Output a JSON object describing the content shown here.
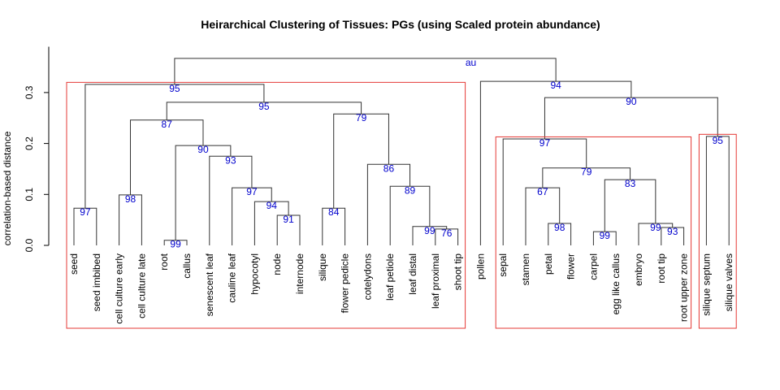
{
  "chart_data": {
    "type": "dendrogram",
    "title": "Heirarchical Clustering of Tissues: PGs (using Scaled protein abundance)",
    "y_label": "correlation-based distance",
    "au_label": "au",
    "ylim": [
      0,
      0.39
    ],
    "yticks": [
      {
        "value": 0,
        "label": "0.0"
      },
      {
        "value": 0.1,
        "label": "0.1"
      },
      {
        "value": 0.2,
        "label": "0.2"
      },
      {
        "value": 0.3,
        "label": "0.3"
      }
    ],
    "line_color": "#333333",
    "au_color": "#0000cd",
    "box_color": "#e53935",
    "tree": {
      "height": 0.367,
      "children": [
        {
          "height": 0.316,
          "au": 95,
          "box": true,
          "children": [
            {
              "height": 0.073,
              "au": 97,
              "children": [
                {
                  "label": "seed"
                },
                {
                  "label": "seed imbibed"
                }
              ]
            },
            {
              "height": 0.281,
              "au": 95,
              "children": [
                {
                  "height": 0.246,
                  "au": 87,
                  "children": [
                    {
                      "height": 0.099,
                      "au": 98,
                      "children": [
                        {
                          "label": "cell culture early"
                        },
                        {
                          "label": "cell culture late"
                        }
                      ]
                    },
                    {
                      "height": 0.196,
                      "au": 90,
                      "children": [
                        {
                          "height": 0.01,
                          "au": 99,
                          "children": [
                            {
                              "label": "root"
                            },
                            {
                              "label": "callus"
                            }
                          ]
                        },
                        {
                          "height": 0.175,
                          "au": 93,
                          "children": [
                            {
                              "label": "senescent leaf"
                            },
                            {
                              "height": 0.113,
                              "au": 97,
                              "children": [
                                {
                                  "label": "cauline leaf"
                                },
                                {
                                  "height": 0.086,
                                  "au": 94,
                                  "children": [
                                    {
                                      "label": "hypocotyl"
                                    },
                                    {
                                      "height": 0.059,
                                      "au": 91,
                                      "children": [
                                        {
                                          "label": "node"
                                        },
                                        {
                                          "label": "internode"
                                        }
                                      ]
                                    }
                                  ]
                                }
                              ]
                            }
                          ]
                        }
                      ]
                    }
                  ]
                },
                {
                  "height": 0.258,
                  "au": 79,
                  "children": [
                    {
                      "height": 0.073,
                      "au": 84,
                      "children": [
                        {
                          "label": "silique"
                        },
                        {
                          "label": "flower pedicle"
                        }
                      ]
                    },
                    {
                      "height": 0.159,
                      "au": 86,
                      "children": [
                        {
                          "label": "cotelydons"
                        },
                        {
                          "height": 0.116,
                          "au": 89,
                          "children": [
                            {
                              "label": "leaf petiole"
                            },
                            {
                              "height": 0.037,
                              "au": 99,
                              "children": [
                                {
                                  "label": "leaf distal"
                                },
                                {
                                  "height": 0.032,
                                  "au": 76,
                                  "children": [
                                    {
                                      "label": "leaf proximal"
                                    },
                                    {
                                      "label": "shoot tip"
                                    }
                                  ]
                                }
                              ]
                            }
                          ]
                        }
                      ]
                    }
                  ]
                }
              ]
            }
          ]
        },
        {
          "height": 0.322,
          "au": 94,
          "children": [
            {
              "label": "pollen"
            },
            {
              "height": 0.29,
              "au": 90,
              "children": [
                {
                  "height": 0.209,
                  "au": 97,
                  "box": true,
                  "children": [
                    {
                      "label": "sepal"
                    },
                    {
                      "height": 0.152,
                      "au": 79,
                      "children": [
                        {
                          "height": 0.113,
                          "au": 67,
                          "children": [
                            {
                              "label": "stamen"
                            },
                            {
                              "height": 0.043,
                              "au": 98,
                              "children": [
                                {
                                  "label": "petal"
                                },
                                {
                                  "label": "flower"
                                }
                              ]
                            }
                          ]
                        },
                        {
                          "height": 0.129,
                          "au": 83,
                          "children": [
                            {
                              "height": 0.027,
                              "au": 99,
                              "children": [
                                {
                                  "label": "carpel"
                                },
                                {
                                  "label": "egg like callus"
                                }
                              ]
                            },
                            {
                              "height": 0.043,
                              "au": 99,
                              "children": [
                                {
                                  "label": "embryo"
                                },
                                {
                                  "height": 0.035,
                                  "au": 93,
                                  "children": [
                                    {
                                      "label": "root tip"
                                    },
                                    {
                                      "label": "root upper zone"
                                    }
                                  ]
                                }
                              ]
                            }
                          ]
                        }
                      ]
                    }
                  ]
                },
                {
                  "height": 0.214,
                  "au": 95,
                  "box": true,
                  "children": [
                    {
                      "label": "silique septum"
                    },
                    {
                      "label": "silique valves"
                    }
                  ]
                }
              ]
            }
          ]
        }
      ]
    }
  }
}
